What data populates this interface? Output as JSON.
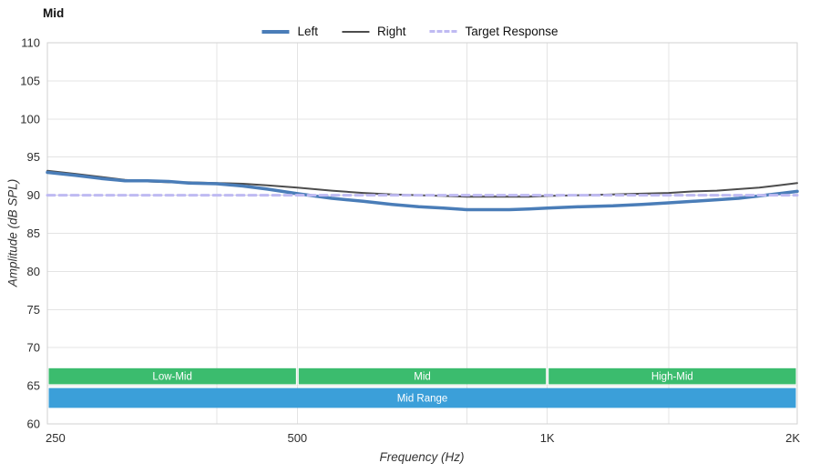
{
  "title": "Mid",
  "chart_data": {
    "type": "line",
    "title": "Mid",
    "xlabel": "Frequency (Hz)",
    "ylabel": "Amplitude (dB SPL)",
    "x_scale": "log",
    "xlim": [
      250,
      2000
    ],
    "ylim": [
      60,
      110
    ],
    "grid": true,
    "legend_position": "top-center",
    "grid_color": "#e4e4e4",
    "border_color": "#d2d2d2",
    "y_ticks": [
      110,
      105,
      100,
      95,
      90,
      85,
      80,
      75,
      70,
      65,
      60
    ],
    "x_ticks": [
      {
        "value": 250,
        "label": "250"
      },
      {
        "value": 500,
        "label": "500"
      },
      {
        "value": 1000,
        "label": "1K"
      },
      {
        "value": 2000,
        "label": "2K"
      }
    ],
    "x_gridlines": [
      400,
      800,
      1400
    ],
    "x": [
      250,
      270,
      290,
      310,
      330,
      350,
      370,
      400,
      430,
      460,
      500,
      550,
      600,
      650,
      700,
      750,
      800,
      850,
      900,
      950,
      1000,
      1100,
      1200,
      1300,
      1400,
      1500,
      1600,
      1700,
      1800,
      1900,
      2000
    ],
    "series": [
      {
        "name": "Left",
        "color": "#4a7db8",
        "width": 3.5,
        "dash": null,
        "z": 2,
        "values": [
          93.0,
          92.6,
          92.2,
          91.9,
          91.9,
          91.8,
          91.6,
          91.5,
          91.2,
          90.8,
          90.2,
          89.6,
          89.2,
          88.8,
          88.5,
          88.3,
          88.1,
          88.1,
          88.1,
          88.2,
          88.3,
          88.5,
          88.6,
          88.8,
          89.0,
          89.2,
          89.4,
          89.6,
          89.9,
          90.2,
          90.5
        ]
      },
      {
        "name": "Right",
        "color": "#4d4d4d",
        "width": 2,
        "dash": null,
        "z": 1,
        "values": [
          93.2,
          92.8,
          92.4,
          92.0,
          91.8,
          91.7,
          91.7,
          91.6,
          91.5,
          91.3,
          91.0,
          90.6,
          90.3,
          90.1,
          90.0,
          89.9,
          89.8,
          89.8,
          89.8,
          89.8,
          89.9,
          90.0,
          90.1,
          90.2,
          90.3,
          90.5,
          90.6,
          90.8,
          91.0,
          91.3,
          91.6
        ]
      },
      {
        "name": "Target Response",
        "color": "#bfbaf2",
        "width": 3,
        "dash": "8 5",
        "z": 3,
        "x": [
          250,
          2000
        ],
        "values": [
          90,
          90
        ]
      }
    ],
    "bands": [
      {
        "name": "sub-bands",
        "color": "#3bbc6e",
        "y_range": [
          65.2,
          67.3
        ],
        "segments": [
          {
            "label": "Low-Mid",
            "from": 250,
            "to": 500
          },
          {
            "label": "Mid",
            "from": 500,
            "to": 1000
          },
          {
            "label": "High-Mid",
            "from": 1000,
            "to": 2000
          }
        ]
      },
      {
        "name": "range",
        "color": "#3b9fd9",
        "y_range": [
          62.1,
          64.7
        ],
        "segments": [
          {
            "label": "Mid Range",
            "from": 250,
            "to": 2000
          }
        ]
      }
    ]
  }
}
